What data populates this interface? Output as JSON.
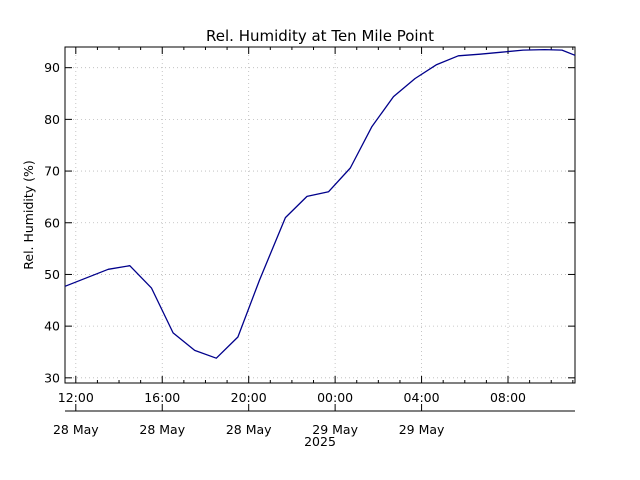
{
  "chart_data": {
    "type": "line",
    "title": "Rel. Humidity at Ten Mile Point",
    "ylabel": "Rel. Humidity (%)",
    "xlabel": "",
    "ylim": [
      29,
      94
    ],
    "x_range_hours": [
      11.5,
      35.1
    ],
    "yticks": [
      30,
      40,
      50,
      60,
      70,
      80,
      90
    ],
    "xticks": [
      {
        "h": 12,
        "label": "12:00"
      },
      {
        "h": 16,
        "label": "16:00"
      },
      {
        "h": 20,
        "label": "20:00"
      },
      {
        "h": 24,
        "label": "00:00"
      },
      {
        "h": 28,
        "label": "04:00"
      },
      {
        "h": 32,
        "label": "08:00"
      }
    ],
    "date_labels": [
      {
        "h": 12,
        "label": "28 May"
      },
      {
        "h": 16,
        "label": "28 May"
      },
      {
        "h": 20,
        "label": "28 May"
      },
      {
        "h": 24,
        "label": "29 May"
      },
      {
        "h": 28,
        "label": "29 May"
      }
    ],
    "year_label": "2025",
    "grid": true,
    "line_color": "#00008b",
    "series": [
      {
        "x_hours": [
          11.5,
          13.5,
          14.5,
          15.5,
          16.5,
          17.5,
          18.5,
          19.5,
          20.5,
          21.7,
          22.7,
          23.7,
          24.7,
          25.7,
          26.7,
          27.7,
          28.7,
          29.7,
          30.7,
          31.7,
          32.7,
          33.7,
          34.5,
          35.1
        ],
        "values": [
          47.7,
          51.0,
          51.7,
          47.4,
          38.7,
          35.3,
          33.8,
          37.9,
          48.9,
          61.0,
          65.1,
          66.0,
          70.6,
          78.6,
          84.4,
          87.9,
          90.6,
          92.3,
          92.6,
          93.0,
          93.4,
          93.5,
          93.4,
          92.4
        ]
      }
    ]
  }
}
